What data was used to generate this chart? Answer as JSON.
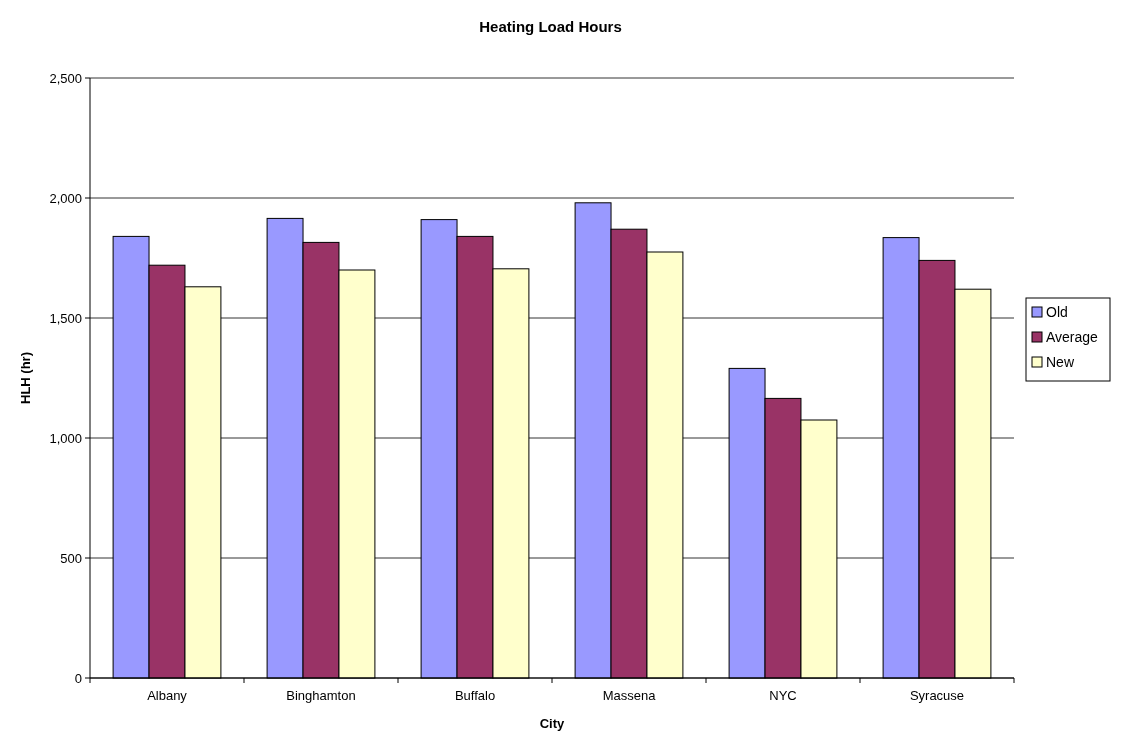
{
  "chart_data": {
    "type": "bar",
    "title": "Heating Load Hours",
    "xlabel": "City",
    "ylabel": "HLH (hr)",
    "categories": [
      "Albany",
      "Binghamton",
      "Buffalo",
      "Massena",
      "NYC",
      "Syracuse"
    ],
    "series": [
      {
        "name": "Old",
        "color": "#9999ff",
        "values": [
          1840,
          1915,
          1910,
          1980,
          1290,
          1835
        ]
      },
      {
        "name": "Average",
        "color": "#993366",
        "values": [
          1720,
          1815,
          1840,
          1870,
          1165,
          1740
        ]
      },
      {
        "name": "New",
        "color": "#ffffcc",
        "values": [
          1630,
          1700,
          1705,
          1775,
          1075,
          1620
        ]
      }
    ],
    "ylim": [
      0,
      2500
    ],
    "yticks": [
      {
        "value": 0,
        "label": "0"
      },
      {
        "value": 500,
        "label": "500"
      },
      {
        "value": 1000,
        "label": "1,000"
      },
      {
        "value": 1500,
        "label": "1,500"
      },
      {
        "value": 2000,
        "label": "2,000"
      },
      {
        "value": 2500,
        "label": "2,500"
      }
    ],
    "grid": "y",
    "legend": "right"
  }
}
